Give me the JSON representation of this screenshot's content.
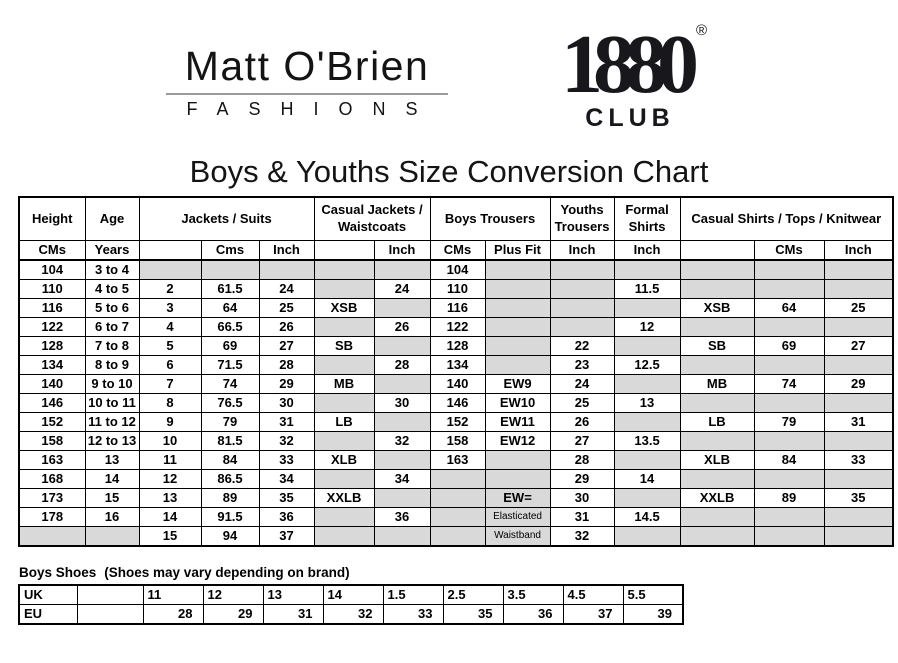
{
  "logos": {
    "matt_obrien": {
      "name": "Matt O'Brien",
      "subtitle": "FASHIONS"
    },
    "club_1880": {
      "digits": "1880",
      "registered": "®",
      "word": "CLUB"
    }
  },
  "title": "Boys & Youths Size Conversion Chart",
  "size_table": {
    "groups": [
      {
        "label": "Height",
        "span": 1
      },
      {
        "label": "Age",
        "span": 1
      },
      {
        "label": "Jackets / Suits",
        "span": 3
      },
      {
        "label": "Casual Jackets / Waistcoats",
        "span": 2
      },
      {
        "label": "Boys Trousers",
        "span": 2
      },
      {
        "label": "Youths Trousers",
        "span": 1
      },
      {
        "label": "Formal Shirts",
        "span": 1
      },
      {
        "label": "Casual Shirts / Tops / Knitwear",
        "span": 3
      }
    ],
    "units": [
      "CMs",
      "Years",
      "",
      "Cms",
      "Inch",
      "",
      "Inch",
      "CMs",
      "Plus Fit",
      "Inch",
      "Inch",
      "",
      "CMs",
      "Inch"
    ],
    "rows": [
      [
        "104",
        "3 to 4",
        "",
        "",
        "",
        "",
        "",
        "104",
        "",
        "",
        "",
        "",
        "",
        ""
      ],
      [
        "110",
        "4 to 5",
        "2",
        "61.5",
        "24",
        "",
        "24",
        "110",
        "",
        "",
        "11.5",
        "",
        "",
        ""
      ],
      [
        "116",
        "5 to 6",
        "3",
        "64",
        "25",
        "XSB",
        "",
        "116",
        "",
        "",
        "",
        "XSB",
        "64",
        "25"
      ],
      [
        "122",
        "6 to 7",
        "4",
        "66.5",
        "26",
        "",
        "26",
        "122",
        "",
        "",
        "12",
        "",
        "",
        ""
      ],
      [
        "128",
        "7 to 8",
        "5",
        "69",
        "27",
        "SB",
        "",
        "128",
        "",
        "22",
        "",
        "SB",
        "69",
        "27"
      ],
      [
        "134",
        "8 to 9",
        "6",
        "71.5",
        "28",
        "",
        "28",
        "134",
        "",
        "23",
        "12.5",
        "",
        "",
        ""
      ],
      [
        "140",
        "9 to 10",
        "7",
        "74",
        "29",
        "MB",
        "",
        "140",
        "EW9",
        "24",
        "",
        "MB",
        "74",
        "29"
      ],
      [
        "146",
        "10 to 11",
        "8",
        "76.5",
        "30",
        "",
        "30",
        "146",
        "EW10",
        "25",
        "13",
        "",
        "",
        ""
      ],
      [
        "152",
        "11 to 12",
        "9",
        "79",
        "31",
        "LB",
        "",
        "152",
        "EW11",
        "26",
        "",
        "LB",
        "79",
        "31"
      ],
      [
        "158",
        "12 to 13",
        "10",
        "81.5",
        "32",
        "",
        "32",
        "158",
        "EW12",
        "27",
        "13.5",
        "",
        "",
        ""
      ],
      [
        "163",
        "13",
        "11",
        "84",
        "33",
        "XLB",
        "",
        "163",
        "",
        "28",
        "",
        "XLB",
        "84",
        "33"
      ],
      [
        "168",
        "14",
        "12",
        "86.5",
        "34",
        "",
        "34",
        "",
        "",
        "29",
        "14",
        "",
        "",
        ""
      ],
      [
        "173",
        "15",
        "13",
        "89",
        "35",
        "XXLB",
        "",
        "",
        {
          "v": "EW=",
          "gray": true
        },
        "30",
        "",
        "XXLB",
        "89",
        "35"
      ],
      [
        "178",
        "16",
        "14",
        "91.5",
        "36",
        "",
        "36",
        "",
        {
          "v": "Elasticated",
          "gray": true,
          "small": true
        },
        "31",
        "14.5",
        "",
        "",
        ""
      ],
      [
        "",
        "",
        "15",
        "94",
        "37",
        "",
        "",
        "",
        {
          "v": "Waistband",
          "gray": true,
          "small": true
        },
        "32",
        "",
        "",
        "",
        ""
      ]
    ]
  },
  "shoes_table": {
    "heading": "Boys Shoes",
    "note": "(Shoes may vary depending on brand)",
    "rows": [
      {
        "label": "UK",
        "values": [
          "11",
          "12",
          "13",
          "14",
          "1.5",
          "2.5",
          "3.5",
          "4.5",
          "5.5"
        ]
      },
      {
        "label": "EU",
        "values": [
          "28",
          "29",
          "31",
          "32",
          "33",
          "35",
          "36",
          "37",
          "39"
        ]
      }
    ]
  }
}
